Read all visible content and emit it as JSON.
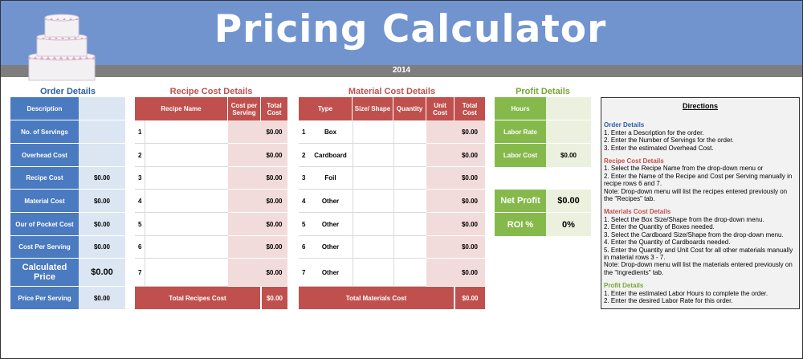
{
  "header": {
    "title": "Pricing Calculator",
    "year": "2014"
  },
  "order": {
    "title": "Order Details",
    "rows": [
      {
        "label": "Description",
        "value": ""
      },
      {
        "label": "No. of Servings",
        "value": ""
      },
      {
        "label": "Overhead Cost",
        "value": ""
      },
      {
        "label": "Recipe Cost",
        "value": "$0.00"
      },
      {
        "label": "Material Cost",
        "value": "$0.00"
      },
      {
        "label": "Our of Pocket Cost",
        "value": "$0.00"
      },
      {
        "label": "Cost Per Serving",
        "value": "$0.00"
      },
      {
        "label": "Calculated Price",
        "value": "$0.00"
      },
      {
        "label": "Price Per Serving",
        "value": "$0.00"
      }
    ]
  },
  "recipe": {
    "title": "Recipe Cost Details",
    "headers": [
      "Recipe Name",
      "Cost per Serving",
      "Total Cost"
    ],
    "rows": [
      {
        "num": "1",
        "total": "$0.00"
      },
      {
        "num": "2",
        "total": "$0.00"
      },
      {
        "num": "3",
        "total": "$0.00"
      },
      {
        "num": "4",
        "total": "$0.00"
      },
      {
        "num": "5",
        "total": "$0.00"
      },
      {
        "num": "6",
        "total": "$0.00"
      },
      {
        "num": "7",
        "total": "$0.00"
      }
    ],
    "total_label": "Total Recipes Cost",
    "total_value": "$0.00"
  },
  "material": {
    "title": "Material Cost Details",
    "headers": [
      "Type",
      "Size/ Shape",
      "Quantity",
      "Unit Cost",
      "Total Cost"
    ],
    "rows": [
      {
        "num": "1",
        "type": "Box",
        "total": "$0.00"
      },
      {
        "num": "2",
        "type": "Cardboard",
        "total": "$0.00"
      },
      {
        "num": "3",
        "type": "Foil",
        "total": "$0.00"
      },
      {
        "num": "4",
        "type": "Other",
        "total": "$0.00"
      },
      {
        "num": "5",
        "type": "Other",
        "total": "$0.00"
      },
      {
        "num": "6",
        "type": "Other",
        "total": "$0.00"
      },
      {
        "num": "7",
        "type": "Other",
        "total": "$0.00"
      }
    ],
    "total_label": "Total Materials Cost",
    "total_value": "$0.00"
  },
  "profit": {
    "title": "Profit Details",
    "rows": [
      {
        "label": "Hours",
        "value": ""
      },
      {
        "label": "Labor Rate",
        "value": ""
      },
      {
        "label": "Labor Cost",
        "value": "$0.00"
      }
    ],
    "net_profit_label": "Net Profit",
    "net_profit_value": "$0.00",
    "roi_label": "ROI %",
    "roi_value": "0%"
  },
  "directions": {
    "title": "Directions",
    "order_head": "Order Details",
    "order_lines": [
      "1. Enter a Description for the order.",
      "2. Enter the Number of Servings for the order.",
      "3. Enter the estimated Overhead Cost."
    ],
    "recipe_head": "Recipe Cost Details",
    "recipe_lines": [
      "1. Select the Recipe Name from the drop-down menu or",
      "2. Enter the Name of the Recipe and Cost per Serving manually in recipe rows 6 and 7.",
      "Note: Drop-down menu will list the recipes entered previously on the \"Recipes\" tab."
    ],
    "materials_head": "Materials Cost Details",
    "materials_lines": [
      "1. Select the Box Size/Shape from the drop-down menu.",
      "2. Enter the Quantity of Boxes needed.",
      "3. Select the Cardboard Size/Shape from the drop-down menu.",
      "4. Enter the Quantity of Cardboards needed.",
      "5. Enter the Quantity and Unit Cost for all other materials manually in material rows 3 - 7.",
      "Note: Drop-down menu will list the materials entered previously on the \"Ingredients\" tab."
    ],
    "profit_head": "Profit Details",
    "profit_lines": [
      "1. Enter the estimated Labor Hours to complete the order.",
      "2. Enter the desired Labor Rate for this order."
    ]
  }
}
